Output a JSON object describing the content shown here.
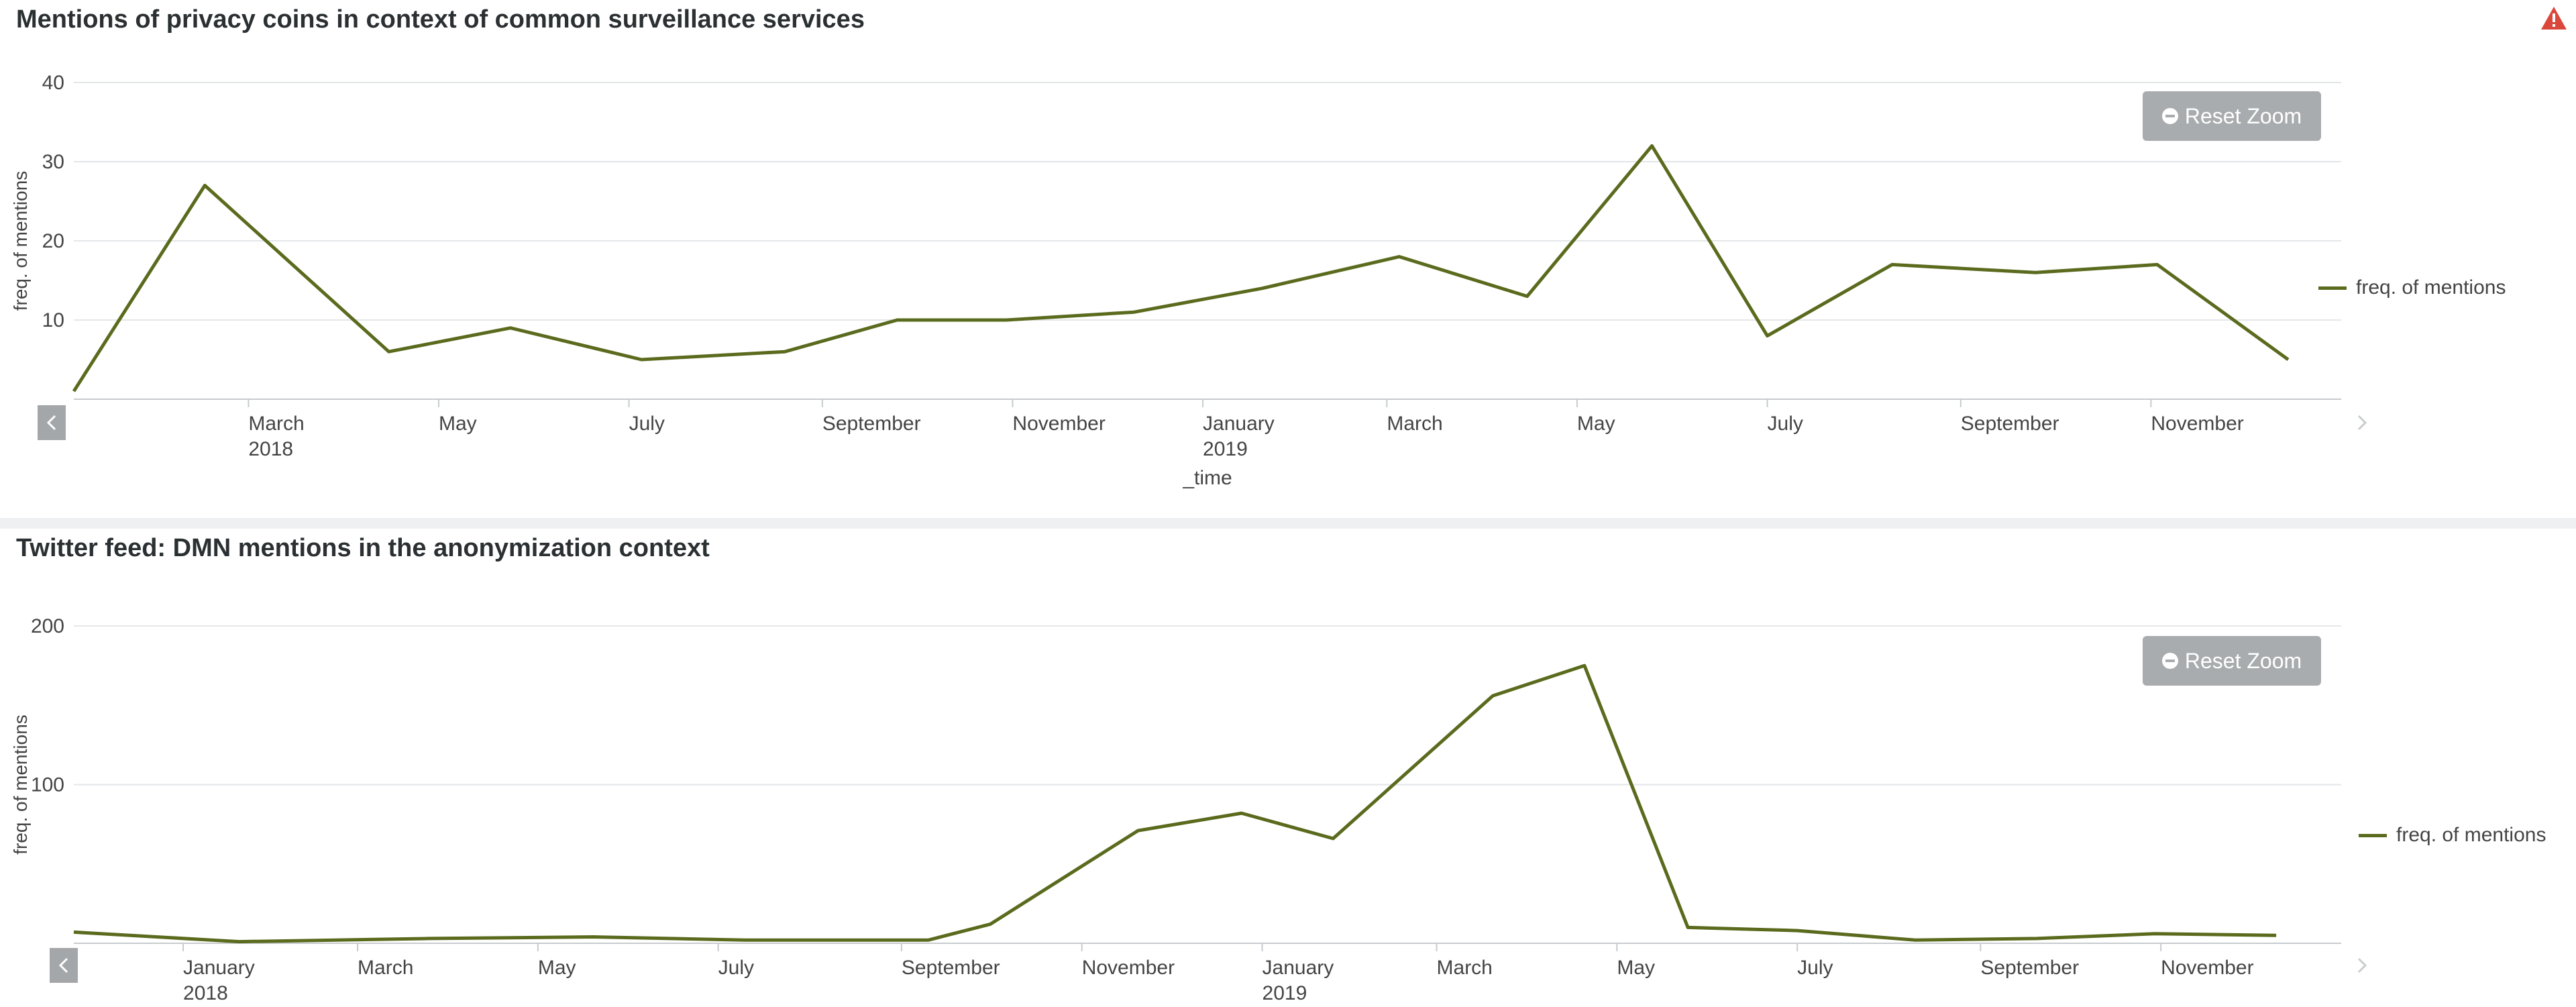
{
  "colors": {
    "series": "#5a6b1e",
    "alert": "#d9483b",
    "button": "#a9acae"
  },
  "chart_data": [
    {
      "type": "line",
      "title": "Mentions of privacy coins in context of common surveillance services",
      "xlabel": "_time",
      "ylabel": "freq. of mentions",
      "ylim": [
        0,
        40
      ],
      "yticks": [
        10,
        20,
        30,
        40
      ],
      "grid": true,
      "legend_position": "right",
      "x_ticks": [
        {
          "date": "2018-03-01",
          "label": "March",
          "year": "2018"
        },
        {
          "date": "2018-05-01",
          "label": "May",
          "year": ""
        },
        {
          "date": "2018-07-01",
          "label": "July",
          "year": ""
        },
        {
          "date": "2018-09-01",
          "label": "September",
          "year": ""
        },
        {
          "date": "2018-11-01",
          "label": "November",
          "year": ""
        },
        {
          "date": "2019-01-01",
          "label": "January",
          "year": "2019"
        },
        {
          "date": "2019-03-01",
          "label": "March",
          "year": ""
        },
        {
          "date": "2019-05-01",
          "label": "May",
          "year": ""
        },
        {
          "date": "2019-07-01",
          "label": "July",
          "year": ""
        },
        {
          "date": "2019-09-01",
          "label": "September",
          "year": ""
        },
        {
          "date": "2019-11-01",
          "label": "November",
          "year": ""
        }
      ],
      "x_range": [
        "2018-01-04",
        "2020-01-01"
      ],
      "series": [
        {
          "name": "freq. of mentions",
          "points": [
            [
              "2018-01-04",
              1
            ],
            [
              "2018-02-15",
              27
            ],
            [
              "2018-04-15",
              6
            ],
            [
              "2018-05-24",
              9
            ],
            [
              "2018-07-05",
              5
            ],
            [
              "2018-08-20",
              6
            ],
            [
              "2018-09-25",
              10
            ],
            [
              "2018-10-30",
              10
            ],
            [
              "2018-12-10",
              11
            ],
            [
              "2019-01-20",
              14
            ],
            [
              "2019-03-05",
              18
            ],
            [
              "2019-04-15",
              13
            ],
            [
              "2019-05-25",
              32
            ],
            [
              "2019-07-01",
              8
            ],
            [
              "2019-08-10",
              17
            ],
            [
              "2019-09-25",
              16
            ],
            [
              "2019-11-03",
              17
            ],
            [
              "2019-12-15",
              5
            ]
          ]
        }
      ]
    },
    {
      "type": "line",
      "title": "Twitter feed: DMN mentions in the anonymization context",
      "xlabel": "",
      "ylabel": "freq. of mentions",
      "ylim": [
        0,
        200
      ],
      "yticks": [
        100,
        200
      ],
      "grid": true,
      "legend_position": "right",
      "x_ticks": [
        {
          "date": "2018-01-01",
          "label": "January",
          "year": "2018"
        },
        {
          "date": "2018-03-01",
          "label": "March",
          "year": ""
        },
        {
          "date": "2018-05-01",
          "label": "May",
          "year": ""
        },
        {
          "date": "2018-07-01",
          "label": "July",
          "year": ""
        },
        {
          "date": "2018-09-01",
          "label": "September",
          "year": ""
        },
        {
          "date": "2018-11-01",
          "label": "November",
          "year": ""
        },
        {
          "date": "2019-01-01",
          "label": "January",
          "year": "2019"
        },
        {
          "date": "2019-03-01",
          "label": "March",
          "year": ""
        },
        {
          "date": "2019-05-01",
          "label": "May",
          "year": ""
        },
        {
          "date": "2019-07-01",
          "label": "July",
          "year": ""
        },
        {
          "date": "2019-09-01",
          "label": "September",
          "year": ""
        },
        {
          "date": "2019-11-01",
          "label": "November",
          "year": ""
        }
      ],
      "x_range": [
        "2017-11-25",
        "2020-01-01"
      ],
      "series": [
        {
          "name": "freq. of mentions",
          "points": [
            [
              "2017-11-25",
              7
            ],
            [
              "2018-01-20",
              1
            ],
            [
              "2018-03-25",
              3
            ],
            [
              "2018-05-20",
              4
            ],
            [
              "2018-07-10",
              2
            ],
            [
              "2018-09-10",
              2
            ],
            [
              "2018-10-01",
              12
            ],
            [
              "2018-11-20",
              71
            ],
            [
              "2018-12-25",
              82
            ],
            [
              "2019-01-25",
              66
            ],
            [
              "2019-03-20",
              156
            ],
            [
              "2019-04-20",
              175
            ],
            [
              "2019-05-25",
              10
            ],
            [
              "2019-07-01",
              8
            ],
            [
              "2019-08-10",
              2
            ],
            [
              "2019-09-20",
              3
            ],
            [
              "2019-10-30",
              6
            ],
            [
              "2019-12-10",
              5
            ]
          ]
        }
      ]
    }
  ],
  "ui": {
    "reset_zoom_label": "Reset Zoom",
    "legend_label": "freq. of mentions"
  }
}
